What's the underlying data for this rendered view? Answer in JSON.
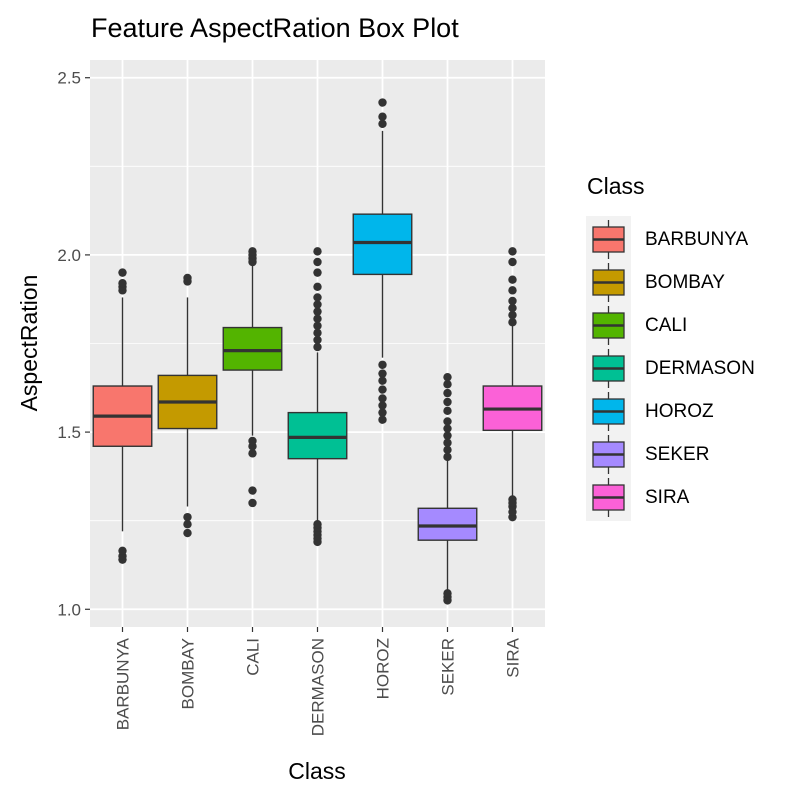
{
  "chart_data": {
    "type": "box",
    "title": "Feature AspectRation Box Plot",
    "xlabel": "Class",
    "ylabel": "AspectRation",
    "ylim": [
      0.95,
      2.55
    ],
    "y_ticks": [
      "1.0",
      "1.5",
      "2.0",
      "2.5"
    ],
    "y_tick_values": [
      1.0,
      1.5,
      2.0,
      2.5
    ],
    "grid": true,
    "legend": {
      "title": "Class",
      "position": "right"
    },
    "categories": [
      "BARBUNYA",
      "BOMBAY",
      "CALI",
      "DERMASON",
      "HOROZ",
      "SEKER",
      "SIRA"
    ],
    "colors": [
      "#F8766D",
      "#C49A00",
      "#53B400",
      "#00C094",
      "#00B6EB",
      "#A58AFF",
      "#FB61D7"
    ],
    "series": [
      {
        "category": "BARBUNYA",
        "whisker_low": 1.22,
        "q1": 1.46,
        "median": 1.545,
        "q3": 1.63,
        "whisker_high": 1.88,
        "outliers": [
          1.14,
          1.15,
          1.165,
          1.9,
          1.91,
          1.92,
          1.95
        ]
      },
      {
        "category": "BOMBAY",
        "whisker_low": 1.29,
        "q1": 1.51,
        "median": 1.585,
        "q3": 1.66,
        "whisker_high": 1.88,
        "outliers": [
          1.215,
          1.24,
          1.26,
          1.925,
          1.935
        ]
      },
      {
        "category": "CALI",
        "whisker_low": 1.49,
        "q1": 1.675,
        "median": 1.73,
        "q3": 1.795,
        "whisker_high": 1.975,
        "outliers": [
          1.3,
          1.335,
          1.44,
          1.46,
          1.475,
          1.98,
          1.99,
          2.0,
          2.01
        ]
      },
      {
        "category": "DERMASON",
        "whisker_low": 1.245,
        "q1": 1.425,
        "median": 1.485,
        "q3": 1.555,
        "whisker_high": 1.725,
        "outliers": [
          1.19,
          1.2,
          1.21,
          1.22,
          1.23,
          1.24,
          1.74,
          1.76,
          1.78,
          1.8,
          1.82,
          1.84,
          1.86,
          1.88,
          1.91,
          1.95,
          1.98,
          2.01
        ]
      },
      {
        "category": "HOROZ",
        "whisker_low": 1.71,
        "q1": 1.945,
        "median": 2.035,
        "q3": 2.115,
        "whisker_high": 2.35,
        "outliers": [
          1.535,
          1.555,
          1.575,
          1.595,
          1.62,
          1.645,
          1.665,
          1.69,
          2.37,
          2.39,
          2.43
        ]
      },
      {
        "category": "SEKER",
        "whisker_low": 1.055,
        "q1": 1.195,
        "median": 1.235,
        "q3": 1.285,
        "whisker_high": 1.42,
        "outliers": [
          1.025,
          1.035,
          1.045,
          1.43,
          1.45,
          1.47,
          1.49,
          1.51,
          1.53,
          1.56,
          1.585,
          1.61,
          1.635,
          1.655
        ]
      },
      {
        "category": "SIRA",
        "whisker_low": 1.32,
        "q1": 1.505,
        "median": 1.565,
        "q3": 1.63,
        "whisker_high": 1.8,
        "outliers": [
          1.26,
          1.275,
          1.29,
          1.3,
          1.31,
          1.81,
          1.83,
          1.85,
          1.87,
          1.9,
          1.93,
          1.98,
          2.01
        ]
      }
    ]
  }
}
